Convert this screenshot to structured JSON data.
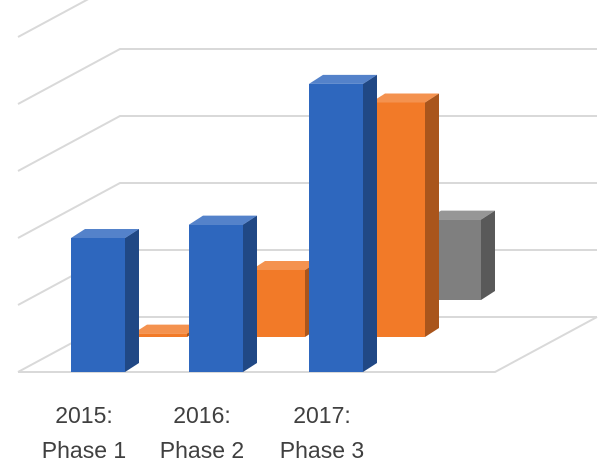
{
  "chart_data": {
    "type": "bar",
    "style": "3d-clustered-column",
    "title": "",
    "xlabel": "",
    "ylabel": "",
    "grid": true,
    "legend": "none",
    "ylim": [
      0,
      5
    ],
    "categories": [
      {
        "line1": "2015:",
        "line2": "Phase 1"
      },
      {
        "line1": "2016:",
        "line2": "Phase 2"
      },
      {
        "line1": "2017:",
        "line2": "Phase 3"
      }
    ],
    "series": [
      {
        "color": "#2E67BE",
        "values": [
          2.0,
          2.2,
          4.3
        ]
      },
      {
        "color": "#F27A28",
        "values": [
          0.05,
          1.0,
          3.5
        ]
      },
      {
        "color": "#7F7F7F",
        "values": [
          0.05,
          0.05,
          1.2
        ]
      }
    ]
  }
}
